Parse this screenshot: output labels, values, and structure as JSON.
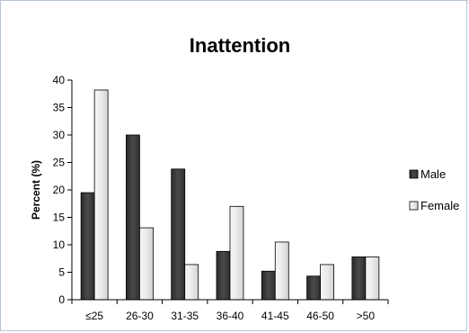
{
  "chart_data": {
    "type": "bar",
    "title": "Inattention",
    "xlabel": "",
    "ylabel": "Percent (%)",
    "ylim": [
      0,
      40
    ],
    "yticks": [
      0,
      5,
      10,
      15,
      20,
      25,
      30,
      35,
      40
    ],
    "grid": false,
    "legend_position": "right",
    "categories": [
      "≤25",
      "26-30",
      "31-35",
      "36-40",
      "41-45",
      "46-50",
      ">50"
    ],
    "series": [
      {
        "name": "Male",
        "values": [
          19.5,
          30.0,
          23.8,
          8.8,
          5.2,
          4.3,
          7.8
        ],
        "color": "#3a3a3a"
      },
      {
        "name": "Female",
        "values": [
          38.2,
          13.1,
          6.4,
          17.0,
          10.5,
          6.4,
          7.8
        ],
        "color": "#e6e6e6"
      }
    ]
  }
}
